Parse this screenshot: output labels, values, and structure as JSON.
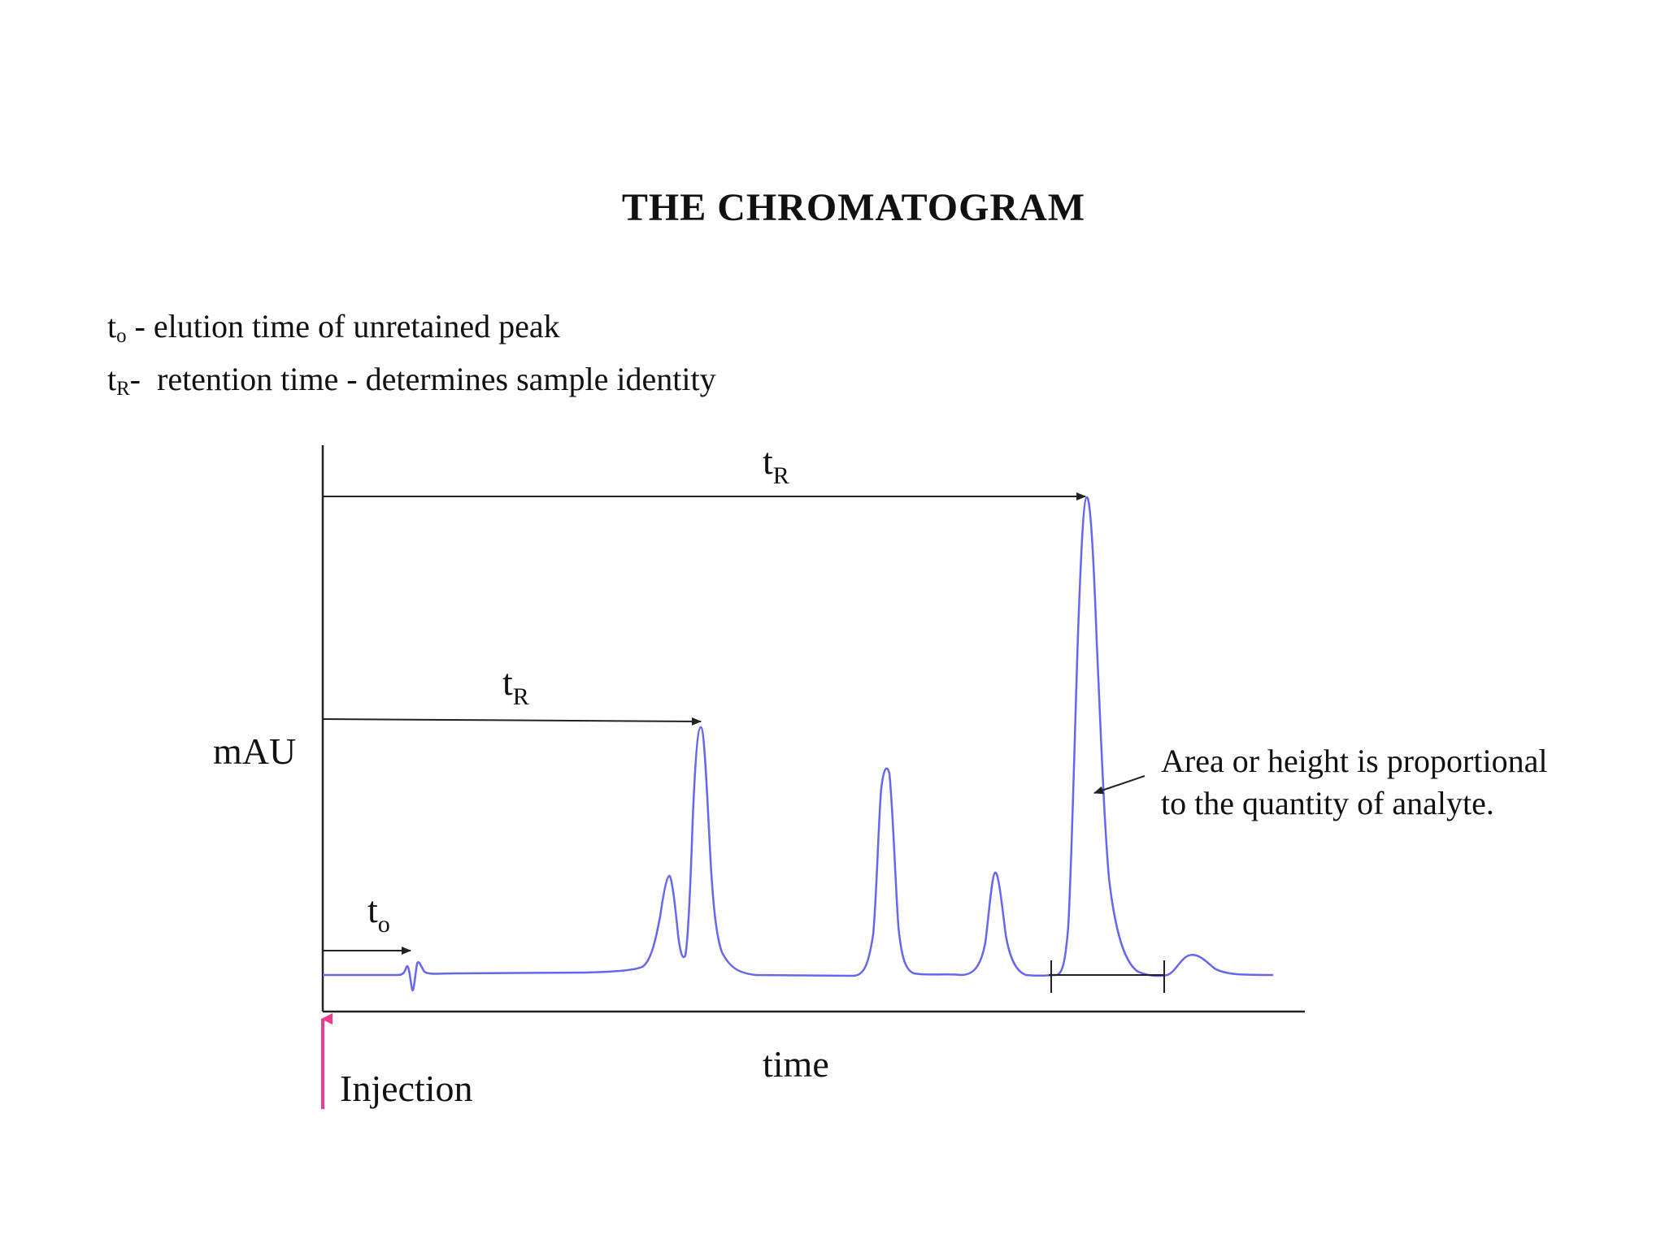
{
  "title": "THE CHROMATOGRAM",
  "legend": [
    {
      "symbol": "t",
      "sub": "o",
      "text": " - elution time of unretained peak"
    },
    {
      "symbol": "t",
      "sub": "R",
      "text": "-  retention time - determines sample identity"
    }
  ],
  "axes": {
    "y_label": "mAU",
    "x_label": "time"
  },
  "annotations": {
    "t0": {
      "symbol": "t",
      "sub": "o"
    },
    "tR_first": {
      "symbol": "t",
      "sub": "R"
    },
    "tR_main": {
      "symbol": "t",
      "sub": "R"
    },
    "injection": "Injection",
    "area_line1": "Area or height is proportional",
    "area_line2": "to the quantity of analyte."
  },
  "colors": {
    "trace": "#6666ee",
    "injection_arrow": "#ee3d8f",
    "lines": "#222222"
  }
}
